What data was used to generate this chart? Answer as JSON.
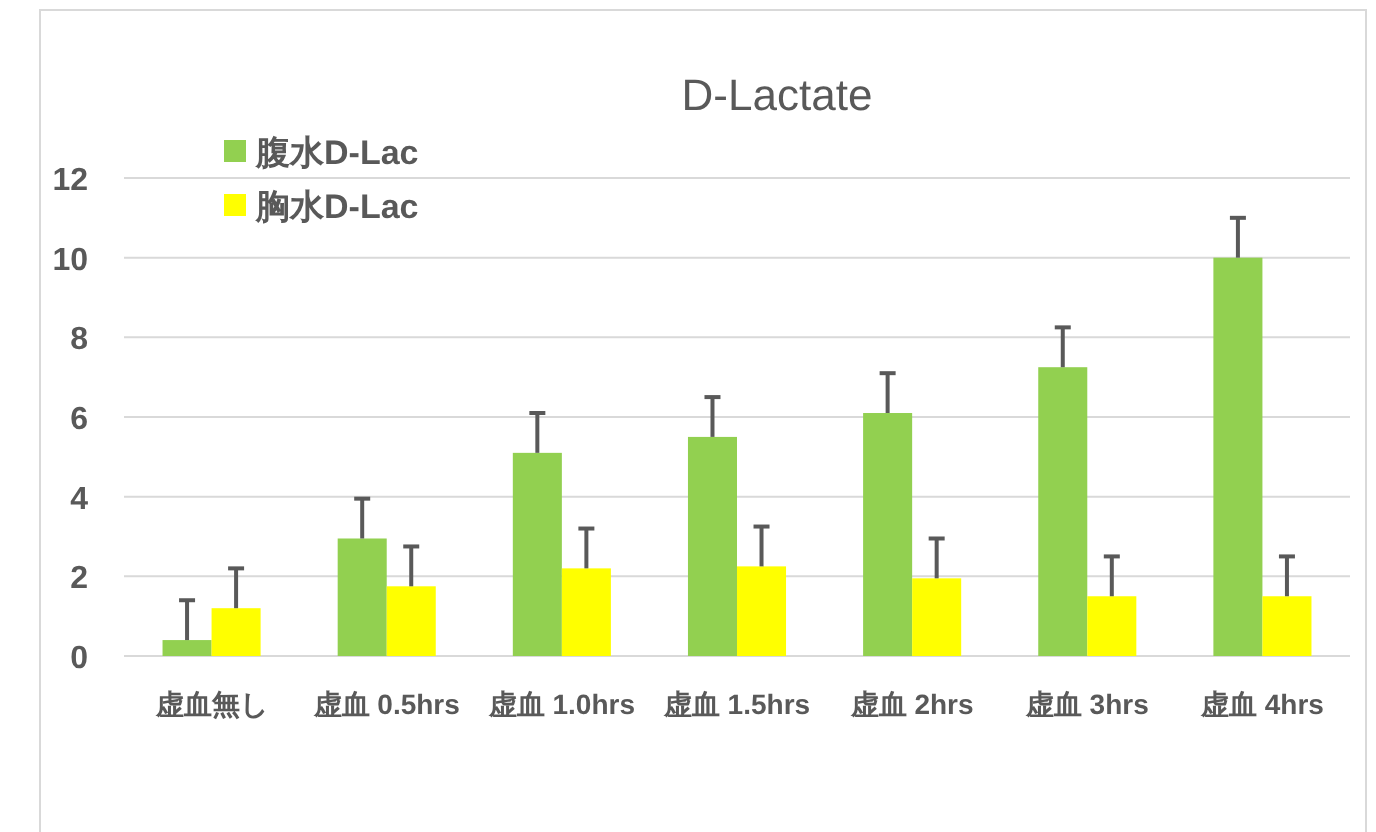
{
  "chart_data": {
    "type": "bar",
    "title": "D-Lactate",
    "categories": [
      "虚血無し",
      "虚血 0.5hrs",
      "虚血 1.0hrs",
      "虚血 1.5hrs",
      "虚血 2hrs",
      "虚血 3hrs",
      "虚血 4hrs"
    ],
    "series": [
      {
        "name": "腹水D-Lac",
        "color": "#92d050",
        "values": [
          0.4,
          2.95,
          5.1,
          5.5,
          6.1,
          7.25,
          10
        ],
        "errors": [
          [
            0.4,
            1.4
          ],
          [
            2.95,
            3.95
          ],
          [
            5.1,
            6.1
          ],
          [
            5.5,
            6.5
          ],
          [
            6.1,
            7.1
          ],
          [
            7.25,
            8.25
          ],
          [
            10,
            11
          ]
        ]
      },
      {
        "name": "胸水D-Lac",
        "color": "#ffff00",
        "values": [
          1.2,
          1.75,
          2.2,
          2.25,
          1.95,
          1.5,
          1.5
        ],
        "errors": [
          [
            1.2,
            2.2
          ],
          [
            1.75,
            2.75
          ],
          [
            2.2,
            3.2
          ],
          [
            2.25,
            3.25
          ],
          [
            1.95,
            2.95
          ],
          [
            1.5,
            2.5
          ],
          [
            1.5,
            2.5
          ]
        ]
      }
    ],
    "ylim": [
      0,
      12
    ],
    "yticks": [
      0,
      2,
      4,
      6,
      8,
      10,
      12
    ],
    "grid": "y",
    "legend": "top left"
  }
}
